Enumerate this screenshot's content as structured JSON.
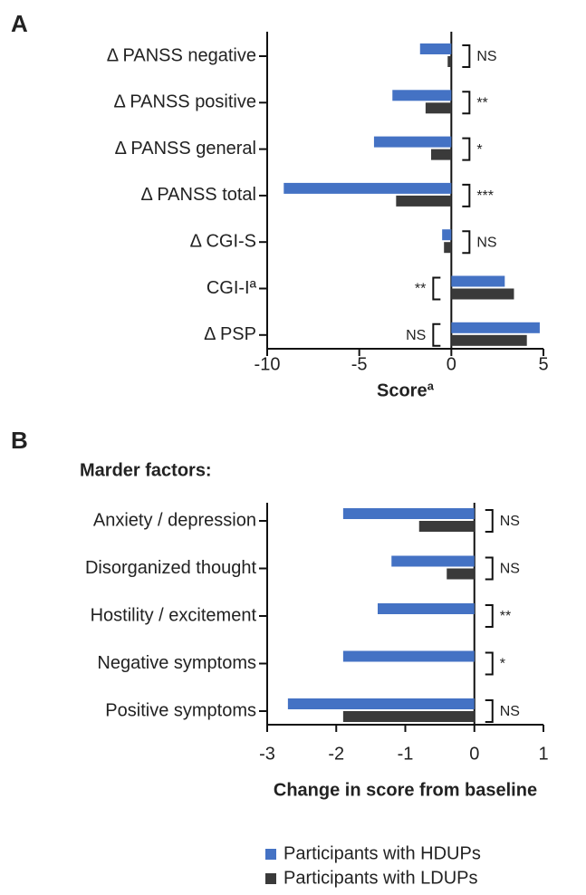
{
  "chart_data": [
    {
      "type": "barh",
      "panel": "A",
      "xlabel": "Scoreª",
      "categories": [
        "Δ PANSS negative",
        "Δ PANSS positive",
        "Δ PANSS general",
        "Δ PANSS total",
        "Δ CGI-S",
        "CGI-Iª",
        "Δ PSP"
      ],
      "series": [
        {
          "color": "#4472c4",
          "values": [
            -1.7,
            -3.2,
            -4.2,
            -9.1,
            -0.5,
            2.9,
            4.8
          ]
        },
        {
          "color": "#3a3a3a",
          "values": [
            -0.2,
            -1.4,
            -1.1,
            -3.0,
            -0.4,
            3.4,
            4.1
          ]
        }
      ],
      "annotations": [
        "NS",
        "**",
        "*",
        "***",
        "NS",
        "**",
        "NS"
      ],
      "xlim": [
        -10,
        5
      ],
      "xticks": [
        -10,
        -5,
        0,
        5
      ]
    },
    {
      "type": "barh",
      "panel": "B",
      "subtitle": "Marder factors:",
      "xlabel": "Change in score from baseline",
      "categories": [
        "Anxiety / depression",
        "Disorganized thought",
        "Hostility / excitement",
        "Negative symptoms",
        "Positive symptoms"
      ],
      "series": [
        {
          "name": "Participants with HDUPs",
          "color": "#4472c4",
          "values": [
            -1.9,
            -1.2,
            -1.4,
            -1.9,
            -2.7
          ]
        },
        {
          "name": "Participants with LDUPs",
          "color": "#3a3a3a",
          "values": [
            -0.8,
            -0.4,
            0,
            0,
            -1.9
          ]
        }
      ],
      "annotations": [
        "NS",
        "NS",
        "**",
        "*",
        "NS"
      ],
      "xlim": [
        -3,
        1
      ],
      "xticks": [
        -3,
        -2,
        -1,
        0,
        1
      ]
    }
  ]
}
